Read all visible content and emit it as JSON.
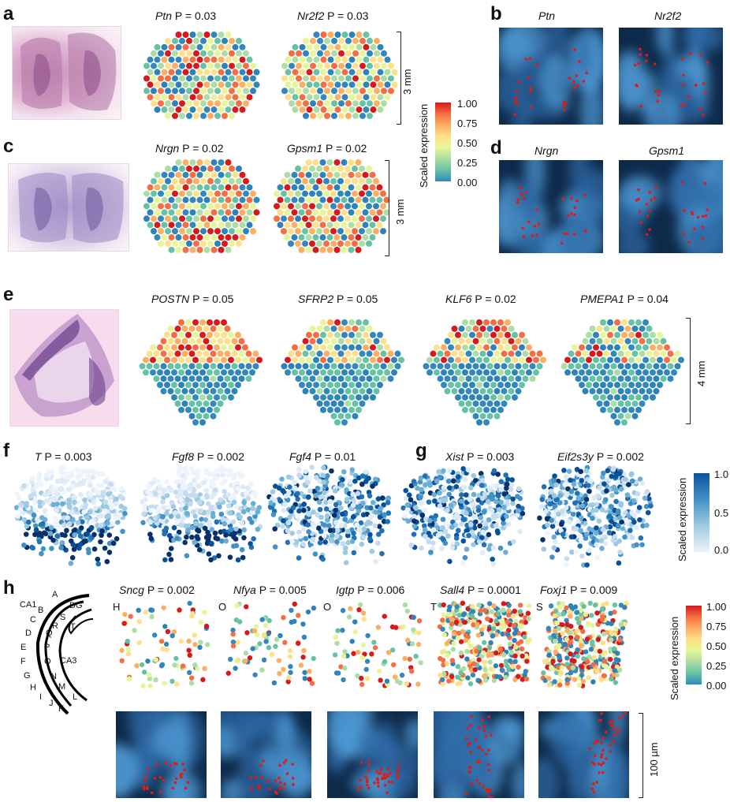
{
  "panels": {
    "a": {
      "label": "a",
      "genes": [
        {
          "gene": "Ptn",
          "p": "P = 0.03"
        },
        {
          "gene": "Nr2f2",
          "p": "P = 0.03"
        }
      ],
      "scale": "3 mm"
    },
    "b": {
      "label": "b",
      "genes": [
        "Ptn",
        "Nr2f2"
      ]
    },
    "c": {
      "label": "c",
      "genes": [
        {
          "gene": "Nrgn",
          "p": "P = 0.02"
        },
        {
          "gene": "Gpsm1",
          "p": "P = 0.02"
        }
      ],
      "scale": "3 mm"
    },
    "d": {
      "label": "d",
      "genes": [
        "Nrgn",
        "Gpsm1"
      ]
    },
    "e": {
      "label": "e",
      "genes": [
        {
          "gene": "POSTN",
          "p": "P = 0.05"
        },
        {
          "gene": "SFRP2",
          "p": "P = 0.05"
        },
        {
          "gene": "KLF6",
          "p": "P = 0.02"
        },
        {
          "gene": "PMEPA1",
          "p": "P = 0.04"
        }
      ],
      "scale": "4 mm"
    },
    "f": {
      "label": "f",
      "genes": [
        {
          "gene": "T",
          "p": "P = 0.003"
        },
        {
          "gene": "Fgf8",
          "p": "P = 0.002"
        },
        {
          "gene": "Fgf4",
          "p": "P = 0.01"
        }
      ]
    },
    "g": {
      "label": "g",
      "genes": [
        {
          "gene": "Xist",
          "p": "P = 0.003"
        },
        {
          "gene": "Eif2s3y",
          "p": "P = 0.002"
        }
      ]
    },
    "h": {
      "label": "h",
      "genes": [
        {
          "gene": "Sncg",
          "p": "P = 0.002",
          "region": "H"
        },
        {
          "gene": "Nfya",
          "p": "P = 0.005",
          "region": "O"
        },
        {
          "gene": "Igtp",
          "p": "P = 0.006",
          "region": "O"
        },
        {
          "gene": "Sall4",
          "p": "P = 0.0001",
          "region": "T"
        },
        {
          "gene": "Foxj1",
          "p": "P = 0.009",
          "region": "S"
        }
      ],
      "scale": "100 µm",
      "hippocampus_labels": [
        "A",
        "B",
        "CA1",
        "C",
        "D",
        "E",
        "F",
        "G",
        "H",
        "I",
        "J",
        "K",
        "L",
        "M",
        "N",
        "O",
        "P",
        "Q",
        "R",
        "S",
        "T",
        "DG",
        "CA3"
      ]
    }
  },
  "colorbar_rainbow": {
    "title": "Scaled expression",
    "ticks": [
      "1.00",
      "0.75",
      "0.50",
      "0.25",
      "0.00"
    ],
    "colors": [
      "#d7191c",
      "#f46d43",
      "#fdae61",
      "#fee08b",
      "#e6f598",
      "#abdda4",
      "#66c2a5",
      "#3288bd",
      "#2b83ba"
    ]
  },
  "colorbar_blue": {
    "title": "Scaled expression",
    "ticks": [
      "1.0",
      "0.5",
      "0.0"
    ],
    "colors": [
      "#08519c",
      "#4292c6",
      "#9ecae1",
      "#deebf7"
    ]
  }
}
